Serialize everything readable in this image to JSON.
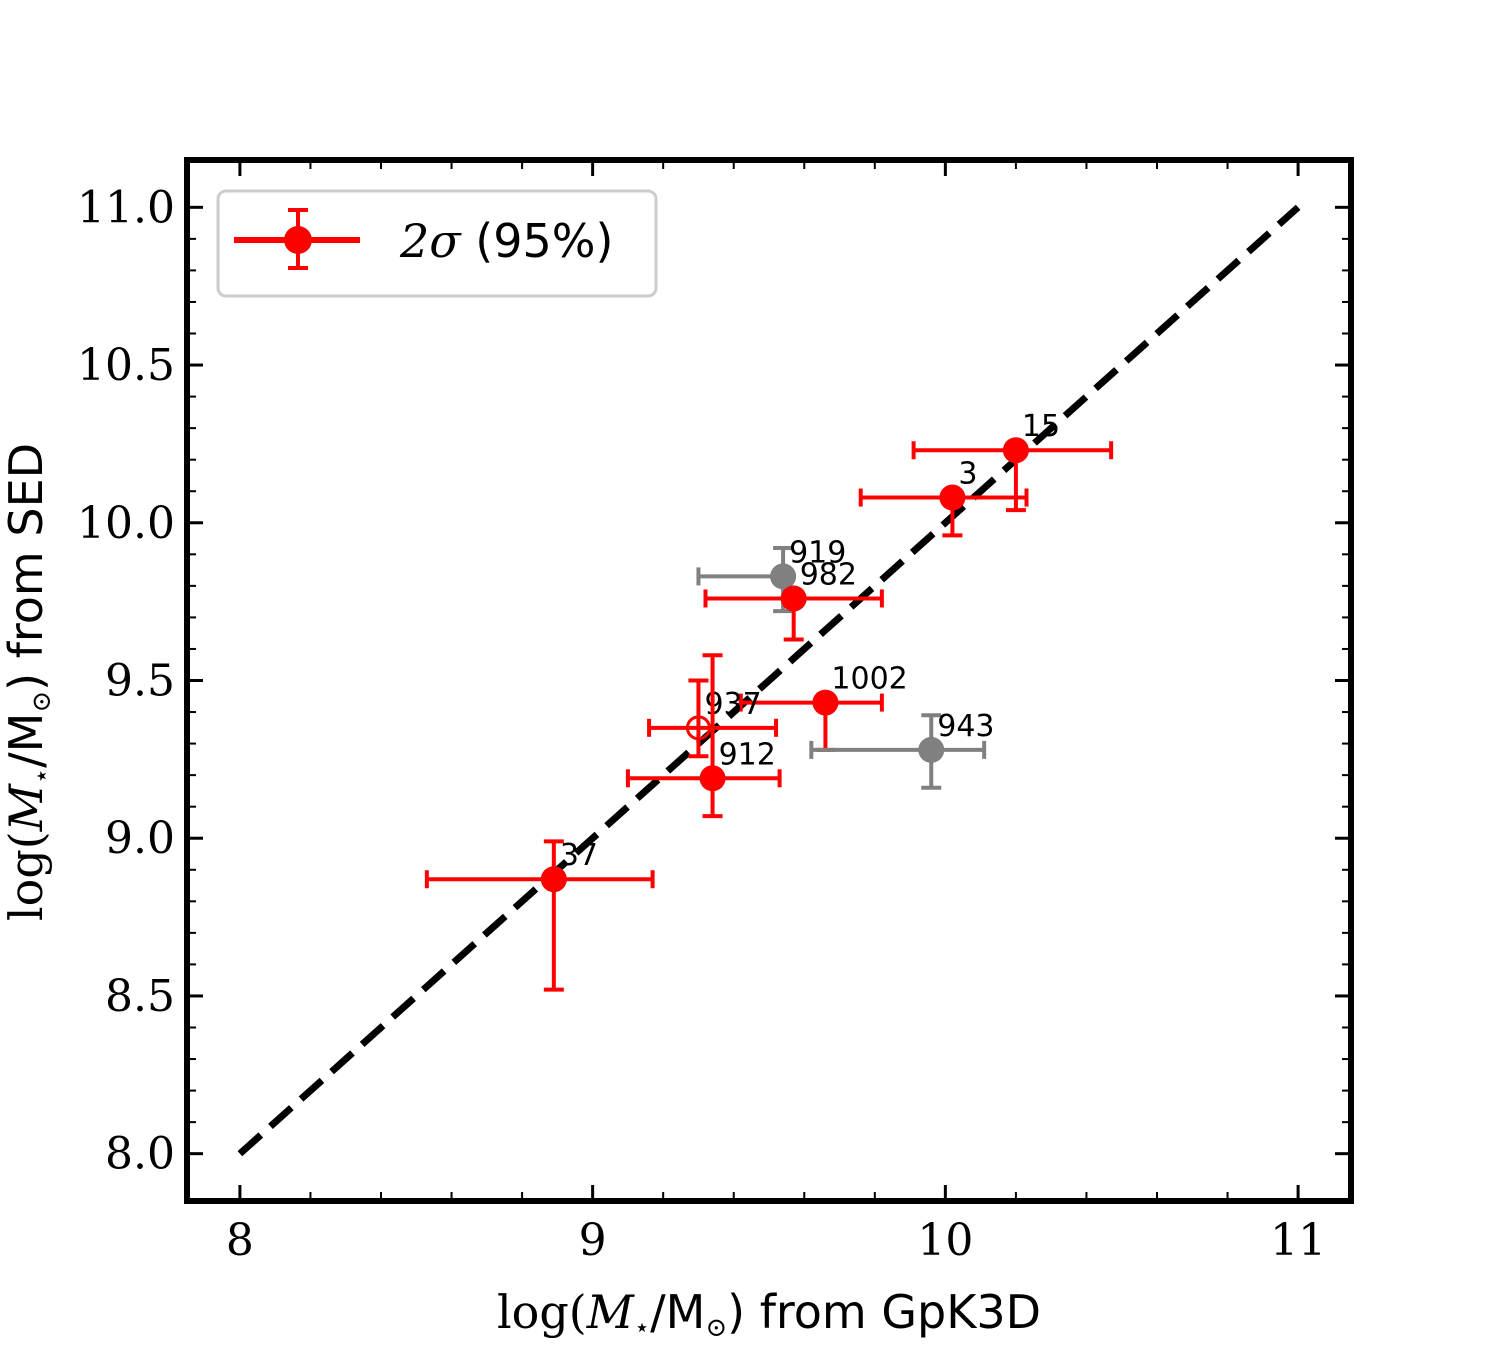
{
  "chart_data": {
    "type": "scatter",
    "title": "",
    "xlabel": {
      "pre": "log(",
      "mvar": "M",
      "star": "⋆",
      "slash": "/M",
      "sun": "⊙",
      "post": ") from GpK3D"
    },
    "ylabel": {
      "pre": "log(",
      "mvar": "M",
      "star": "⋆",
      "slash": "/M",
      "sun": "⊙",
      "post": ") from SED"
    },
    "xlim": [
      7.85,
      11.15
    ],
    "ylim": [
      7.85,
      11.15
    ],
    "xticks": [
      {
        "value": 8,
        "label": "8"
      },
      {
        "value": 9,
        "label": "9"
      },
      {
        "value": 10,
        "label": "10"
      },
      {
        "value": 11,
        "label": "11"
      }
    ],
    "yticks": [
      {
        "value": 8.0,
        "label": "8.0"
      },
      {
        "value": 8.5,
        "label": "8.5"
      },
      {
        "value": 9.0,
        "label": "9.0"
      },
      {
        "value": 9.5,
        "label": "9.5"
      },
      {
        "value": 10.0,
        "label": "10.0"
      },
      {
        "value": 10.5,
        "label": "10.5"
      },
      {
        "value": 11.0,
        "label": "11.0"
      }
    ],
    "minor_step": 0.2,
    "minor_step_y": 0.1,
    "one_to_one_line": {
      "x": [
        8,
        11
      ],
      "y": [
        8,
        11
      ],
      "style": "dashed",
      "color": "#000000"
    },
    "legend": {
      "position": "top-left",
      "label_sigma": "2σ",
      "label_rest": " (95%)"
    },
    "colors": {
      "main": "#ff0000",
      "excluded": "#808080",
      "line": "#000000"
    },
    "points": [
      {
        "id": "15",
        "x": 10.2,
        "y": 10.23,
        "xerr": [
          0.29,
          0.27
        ],
        "yerr": [
          0.19,
          0.0
        ],
        "color": "#ff0000",
        "filled": true
      },
      {
        "id": "3",
        "x": 10.02,
        "y": 10.08,
        "xerr": [
          0.26,
          0.21
        ],
        "yerr": [
          0.12,
          0.0
        ],
        "color": "#ff0000",
        "filled": true
      },
      {
        "id": "919",
        "x": 9.54,
        "y": 9.83,
        "xerr": [
          0.24,
          0.0
        ],
        "yerr": [
          0.11,
          0.09
        ],
        "color": "#808080",
        "filled": true
      },
      {
        "id": "982",
        "x": 9.57,
        "y": 9.76,
        "xerr": [
          0.25,
          0.25
        ],
        "yerr": [
          0.13,
          0.0
        ],
        "color": "#ff0000",
        "filled": true
      },
      {
        "id": "1002",
        "x": 9.66,
        "y": 9.43,
        "xerr": [
          0.24,
          0.16
        ],
        "yerr": [
          0.15,
          0.0
        ],
        "color": "#ff0000",
        "filled": true
      },
      {
        "id": "943",
        "x": 9.96,
        "y": 9.28,
        "xerr": [
          0.34,
          0.15
        ],
        "yerr": [
          0.12,
          0.11
        ],
        "color": "#808080",
        "filled": true
      },
      {
        "id": "937",
        "x": 9.3,
        "y": 9.35,
        "xerr": [
          0.14,
          0.22
        ],
        "yerr": [
          0.09,
          0.15
        ],
        "color": "#ff0000",
        "filled": false
      },
      {
        "id": "912",
        "x": 9.34,
        "y": 9.19,
        "xerr": [
          0.24,
          0.19
        ],
        "yerr": [
          0.12,
          0.39
        ],
        "color": "#ff0000",
        "filled": true
      },
      {
        "id": "37",
        "x": 8.89,
        "y": 8.87,
        "xerr": [
          0.36,
          0.28
        ],
        "yerr": [
          0.35,
          0.12
        ],
        "color": "#ff0000",
        "filled": true
      }
    ]
  }
}
